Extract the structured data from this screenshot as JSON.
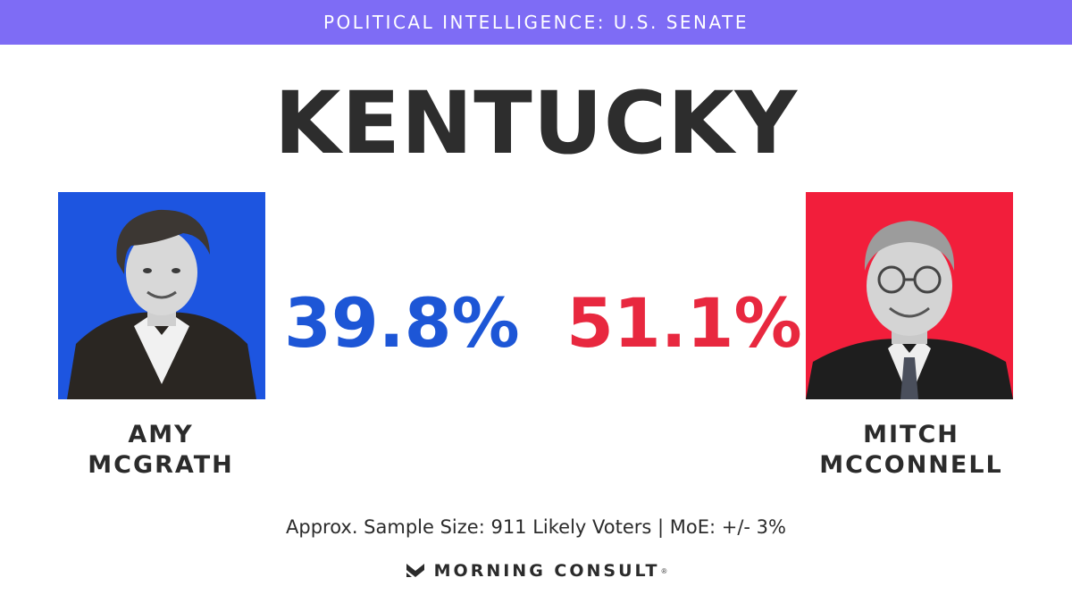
{
  "banner": {
    "text": "POLITICAL INTELLIGENCE: U.S. SENATE",
    "color": "#7e6cf5"
  },
  "state": "KENTUCKY",
  "candidates": [
    {
      "first": "AMY",
      "last": "MCGRATH",
      "percent": "39.8%",
      "color": "#1d56d6",
      "photo_bg": "#1d55e0"
    },
    {
      "first": "MITCH",
      "last": "MCCONNELL",
      "percent": "51.1%",
      "color": "#e8283f",
      "photo_bg": "#f21e3b"
    }
  ],
  "sample": "Approx. Sample Size: 911 Likely Voters | MoE: +/- 3%",
  "brand": {
    "name": "MORNING CONSULT",
    "reg": "®",
    "logo_icon": "morning-consult-logo-icon"
  }
}
